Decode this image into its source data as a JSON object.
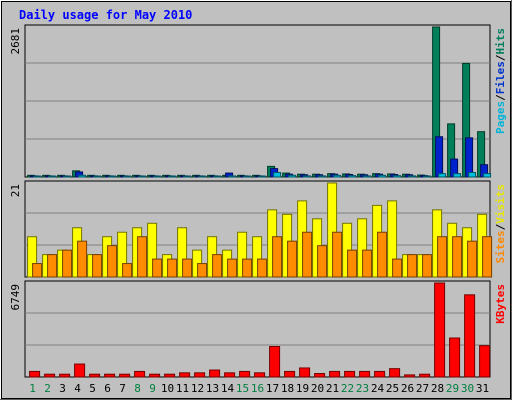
{
  "chart_data": {
    "type": "bar",
    "title": "Daily usage for May 2010",
    "categories": [
      "1",
      "2",
      "3",
      "4",
      "5",
      "6",
      "7",
      "8",
      "9",
      "10",
      "11",
      "12",
      "13",
      "14",
      "15",
      "16",
      "17",
      "18",
      "19",
      "20",
      "21",
      "22",
      "23",
      "24",
      "25",
      "26",
      "27",
      "28",
      "29",
      "30",
      "31"
    ],
    "weekend_days": [
      "1",
      "2",
      "8",
      "9",
      "15",
      "16",
      "22",
      "23",
      "29",
      "30"
    ],
    "panels": [
      {
        "id": "hits-panel",
        "ymax_label": "2681",
        "ymax": 2681,
        "legend": [
          {
            "label": "Pages",
            "color": "#00b4d8"
          },
          {
            "label": "Files",
            "color": "#0033cc"
          },
          {
            "label": "Hits",
            "color": "#007d5c"
          }
        ],
        "series": [
          {
            "name": "Hits",
            "color": "#00805a",
            "values": [
              30,
              30,
              30,
              110,
              30,
              30,
              30,
              30,
              30,
              30,
              30,
              30,
              30,
              30,
              30,
              30,
              190,
              70,
              50,
              50,
              60,
              55,
              50,
              60,
              55,
              50,
              35,
              2681,
              950,
              2030,
              810
            ]
          },
          {
            "name": "Files",
            "color": "#0022cc",
            "values": [
              20,
              20,
              20,
              90,
              20,
              20,
              20,
              20,
              20,
              20,
              20,
              20,
              20,
              70,
              20,
              20,
              150,
              50,
              40,
              40,
              50,
              45,
              40,
              50,
              45,
              40,
              25,
              720,
              320,
              700,
              220
            ]
          },
          {
            "name": "Pages",
            "color": "#00c0e0",
            "values": [
              10,
              10,
              10,
              30,
              10,
              10,
              10,
              10,
              10,
              10,
              10,
              10,
              10,
              20,
              10,
              10,
              80,
              30,
              20,
              20,
              30,
              25,
              20,
              30,
              25,
              20,
              10,
              60,
              60,
              80,
              60
            ]
          }
        ]
      },
      {
        "id": "visits-panel",
        "ymax_label": "21",
        "ymax": 21,
        "legend": [
          {
            "label": "Sites",
            "color": "#ff8800"
          },
          {
            "label": "Visits",
            "color": "#e8e800"
          }
        ],
        "series": [
          {
            "name": "Visits",
            "color": "#ffff00",
            "values": [
              9,
              5,
              6,
              11,
              5,
              9,
              10,
              11,
              12,
              5,
              11,
              6,
              9,
              6,
              10,
              9,
              15,
              14,
              17,
              13,
              21,
              12,
              13,
              16,
              17,
              5,
              5,
              15,
              12,
              11,
              14
            ]
          },
          {
            "name": "Sites",
            "color": "#ff8c00",
            "values": [
              3,
              5,
              6,
              8,
              5,
              7,
              3,
              9,
              4,
              4,
              4,
              3,
              5,
              4,
              4,
              4,
              9,
              8,
              10,
              7,
              10,
              6,
              6,
              10,
              4,
              5,
              5,
              9,
              9,
              8,
              9
            ]
          }
        ]
      },
      {
        "id": "kbytes-panel",
        "ymax_label": "6749",
        "ymax": 6749,
        "legend": [
          {
            "label": "KBytes",
            "color": "#ff0000"
          }
        ],
        "series": [
          {
            "name": "KBytes",
            "color": "#ff0000",
            "values": [
              400,
              200,
              200,
              930,
              200,
              200,
              200,
              400,
              200,
              200,
              300,
              300,
              500,
              300,
              400,
              300,
              2190,
              400,
              650,
              250,
              400,
              400,
              400,
              400,
              600,
              150,
              200,
              6749,
              2800,
              5900,
              2250
            ]
          }
        ]
      }
    ]
  }
}
